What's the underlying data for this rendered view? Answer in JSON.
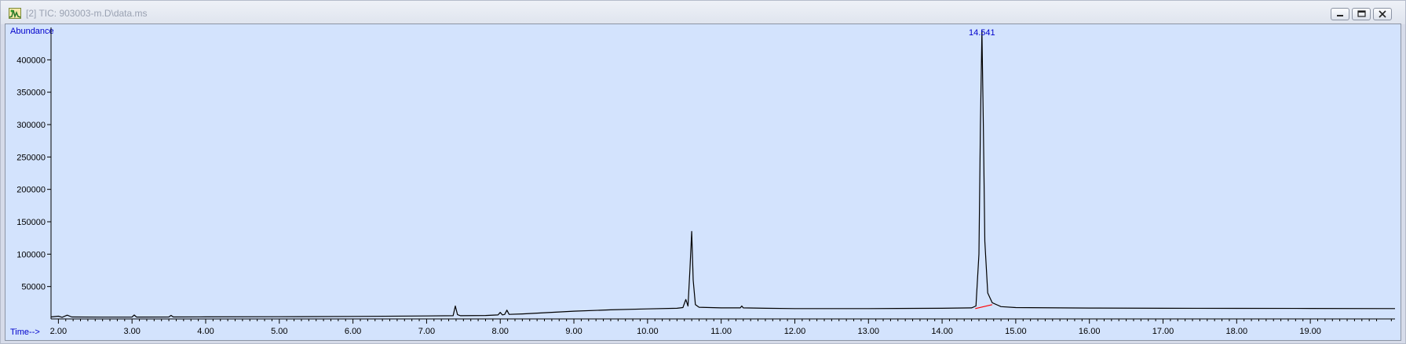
{
  "window": {
    "title": "[2] TIC: 903003-m.D\\data.ms",
    "icon": "chromatogram-app-icon",
    "controls": [
      "minimize-icon",
      "restore-icon",
      "close-icon"
    ]
  },
  "chart_data": {
    "type": "line",
    "ylabel": "Abundance",
    "xlabel": "Time-->",
    "xlim": [
      1.9,
      20.15
    ],
    "ylim": [
      0,
      450000
    ],
    "x_ticks": [
      "2.00",
      "3.00",
      "4.00",
      "5.00",
      "6.00",
      "7.00",
      "8.00",
      "9.00",
      "10.00",
      "11.00",
      "12.00",
      "13.00",
      "14.00",
      "15.00",
      "16.00",
      "17.00",
      "18.00",
      "19.00"
    ],
    "y_ticks": [
      "50000",
      "100000",
      "150000",
      "200000",
      "250000",
      "300000",
      "350000",
      "400000"
    ],
    "peak_label": "14.541",
    "colors": {
      "trace": "#000000",
      "baseline": "#ff0000",
      "label": "#0000cc",
      "background": "#d3e3fd"
    },
    "series": [
      {
        "values": [
          [
            1.9,
            3000
          ],
          [
            2.0,
            4200
          ],
          [
            2.05,
            2600
          ],
          [
            2.12,
            5800
          ],
          [
            2.18,
            3000
          ],
          [
            2.6,
            2800
          ],
          [
            3.0,
            2900
          ],
          [
            3.03,
            6000
          ],
          [
            3.06,
            2900
          ],
          [
            3.5,
            3000
          ],
          [
            3.53,
            5500
          ],
          [
            3.56,
            3000
          ],
          [
            4.0,
            3100
          ],
          [
            5.0,
            3400
          ],
          [
            6.0,
            3900
          ],
          [
            7.0,
            4600
          ],
          [
            7.36,
            4900
          ],
          [
            7.39,
            20000
          ],
          [
            7.42,
            6500
          ],
          [
            7.46,
            4900
          ],
          [
            7.8,
            5300
          ],
          [
            7.97,
            6200
          ],
          [
            8.0,
            10000
          ],
          [
            8.03,
            6200
          ],
          [
            8.06,
            7000
          ],
          [
            8.09,
            13500
          ],
          [
            8.12,
            7000
          ],
          [
            8.3,
            7800
          ],
          [
            8.5,
            9000
          ],
          [
            9.0,
            12000
          ],
          [
            9.5,
            14000
          ],
          [
            10.0,
            15500
          ],
          [
            10.4,
            16500
          ],
          [
            10.48,
            17500
          ],
          [
            10.52,
            30000
          ],
          [
            10.55,
            20000
          ],
          [
            10.575,
            75000
          ],
          [
            10.6,
            135000
          ],
          [
            10.62,
            60000
          ],
          [
            10.65,
            22000
          ],
          [
            10.7,
            18000
          ],
          [
            11.0,
            17000
          ],
          [
            11.26,
            17000
          ],
          [
            11.28,
            20000
          ],
          [
            11.3,
            17000
          ],
          [
            11.6,
            16500
          ],
          [
            12.0,
            16000
          ],
          [
            13.0,
            16000
          ],
          [
            14.0,
            16500
          ],
          [
            14.4,
            17000
          ],
          [
            14.46,
            20000
          ],
          [
            14.5,
            100000
          ],
          [
            14.52,
            300000
          ],
          [
            14.541,
            445000
          ],
          [
            14.56,
            300000
          ],
          [
            14.58,
            120000
          ],
          [
            14.62,
            40000
          ],
          [
            14.68,
            25000
          ],
          [
            14.8,
            19000
          ],
          [
            15.0,
            17500
          ],
          [
            16.0,
            16800
          ],
          [
            17.0,
            16500
          ],
          [
            18.0,
            16300
          ],
          [
            19.0,
            16200
          ],
          [
            20.15,
            16000
          ]
        ]
      }
    ],
    "baseline_segment": [
      [
        14.45,
        16000
      ],
      [
        14.68,
        22000
      ]
    ]
  }
}
